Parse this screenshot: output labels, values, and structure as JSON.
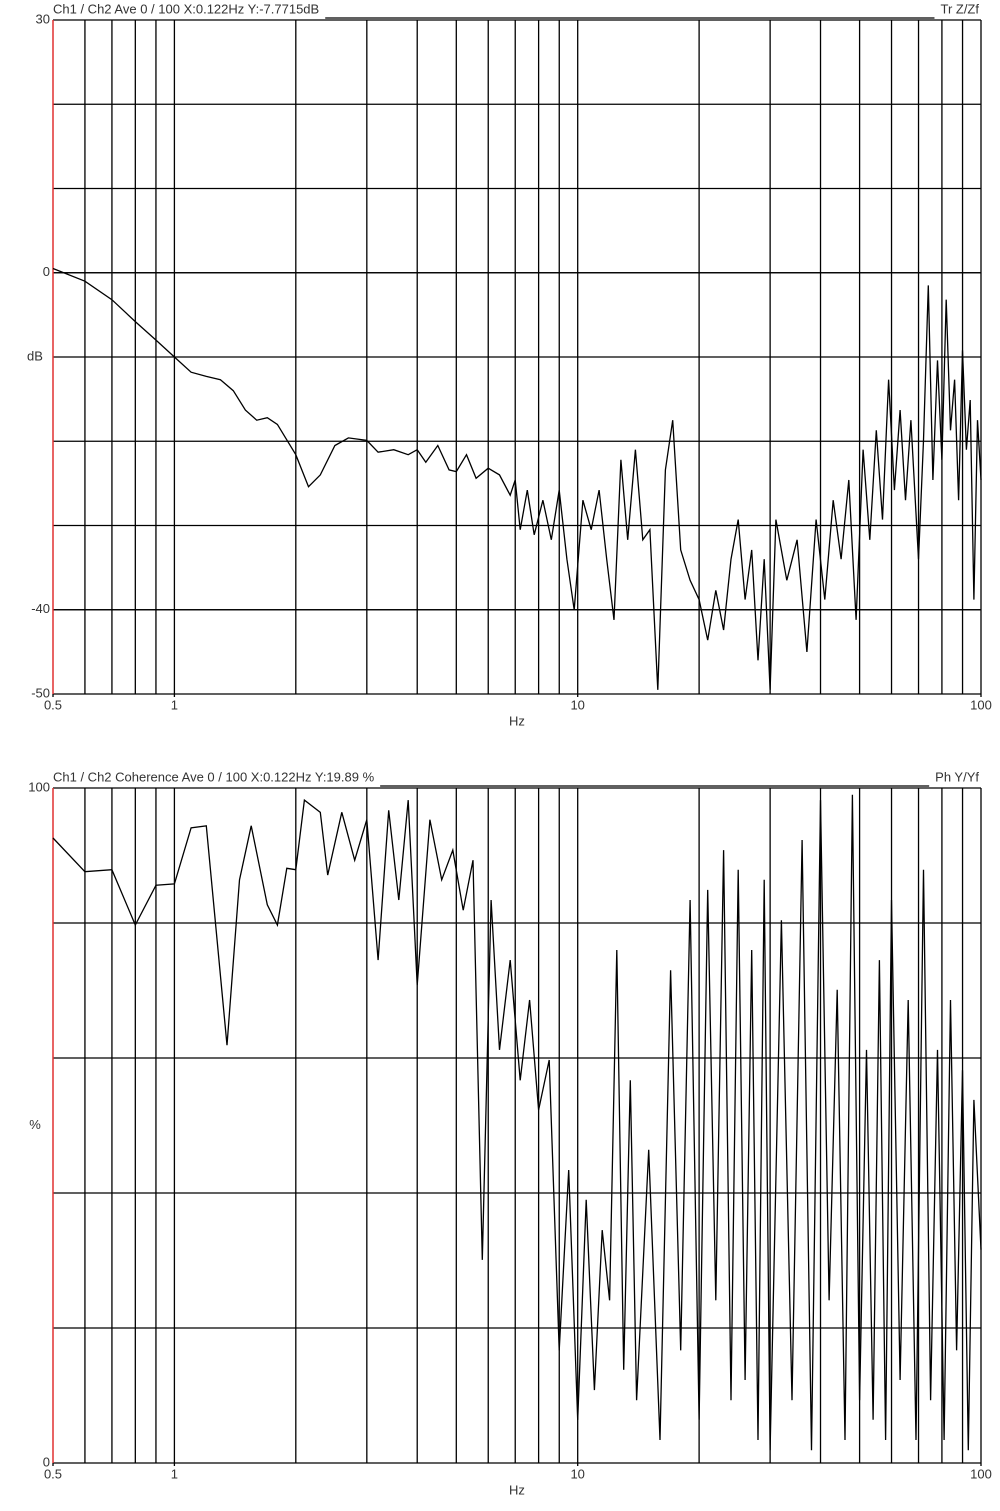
{
  "chart_data": [
    {
      "type": "line",
      "title": "Ch1 / Ch2  Ave 0 / 100  X:0.122Hz  Y:-7.7715dB",
      "title_right": "Tr Z/Zf",
      "xlabel": "Hz",
      "ylabel": "dB",
      "ylabel_at": -10,
      "xlog": true,
      "xlim": [
        0.5,
        100
      ],
      "xticks": [
        0.5,
        1,
        10,
        100
      ],
      "xgrid": [
        0.6,
        0.7,
        0.8,
        0.9,
        1,
        2,
        3,
        4,
        5,
        6,
        7,
        8,
        9,
        10,
        20,
        30,
        40,
        50,
        60,
        70,
        80,
        90
      ],
      "ylim": [
        -50,
        30
      ],
      "yticks": [
        30,
        0,
        -40,
        -50
      ],
      "ygrid": [
        20,
        10,
        0,
        -10,
        -20,
        -30,
        -40
      ],
      "color": "#000000",
      "axis_color": "#e03030",
      "x": [
        0.5,
        0.6,
        0.7,
        0.8,
        0.9,
        1.0,
        1.1,
        1.2,
        1.3,
        1.4,
        1.5,
        1.6,
        1.7,
        1.8,
        2.0,
        2.15,
        2.3,
        2.5,
        2.7,
        3.0,
        3.2,
        3.5,
        3.8,
        4.0,
        4.2,
        4.5,
        4.8,
        5.0,
        5.3,
        5.6,
        6.0,
        6.4,
        6.8,
        7.0,
        7.2,
        7.5,
        7.8,
        8.2,
        8.6,
        9.0,
        9.4,
        9.8,
        10.3,
        10.8,
        11.3,
        11.8,
        12.3,
        12.8,
        13.3,
        13.9,
        14.5,
        15.1,
        15.8,
        16.5,
        17.2,
        18,
        19,
        20,
        21,
        22,
        23,
        24,
        25,
        26,
        27,
        28,
        29,
        30,
        31,
        33,
        35,
        37,
        39,
        41,
        43,
        45,
        47,
        49,
        51,
        53,
        55,
        57,
        59,
        61,
        63,
        65,
        67,
        70,
        72,
        74,
        76,
        78,
        80,
        82,
        84,
        86,
        88,
        90,
        92,
        94,
        96,
        98,
        100
      ],
      "values": [
        0.5,
        -1,
        -3.2,
        -5.8,
        -8,
        -10,
        -11.8,
        -12.3,
        -12.7,
        -14,
        -16.3,
        -17.5,
        -17.2,
        -18,
        -21.6,
        -25.4,
        -24,
        -20.5,
        -19.6,
        -19.9,
        -21.3,
        -21,
        -21.6,
        -21,
        -22.5,
        -20.5,
        -23.4,
        -23.6,
        -21.6,
        -24.4,
        -23.2,
        -24,
        -26.4,
        -24.6,
        -30.5,
        -25.8,
        -31.1,
        -27,
        -31.7,
        -25.8,
        -34,
        -40,
        -27,
        -30.5,
        -25.8,
        -34,
        -41.2,
        -22.2,
        -31.7,
        -21,
        -31.7,
        -30.5,
        -49.5,
        -23.4,
        -17.5,
        -32.9,
        -36.5,
        -38.8,
        -43.6,
        -37.7,
        -42.4,
        -34,
        -29.3,
        -38.8,
        -32.9,
        -46,
        -34,
        -49.5,
        -29.3,
        -36.5,
        -31.7,
        -45,
        -29.3,
        -38.8,
        -27,
        -34,
        -24.6,
        -41.2,
        -21,
        -31.7,
        -18.7,
        -29.3,
        -12.7,
        -25.8,
        -16.3,
        -27,
        -17.5,
        -34,
        -19.9,
        -1.5,
        -24.6,
        -10.4,
        -22.2,
        -3.2,
        -18.7,
        -12.7,
        -27,
        -9.2,
        -21,
        -15.1,
        -38.8,
        -17.5,
        -24.6
      ]
    },
    {
      "type": "line",
      "title": "Ch1 / Ch2  Coherence Ave 0 / 100  X:0.122Hz  Y:19.89 %",
      "title_right": "Ph Y/Yf",
      "xlabel": "Hz",
      "ylabel": "%",
      "ylabel_at": 50,
      "xlog": true,
      "xlim": [
        0.5,
        100
      ],
      "xticks": [
        0.5,
        1,
        10,
        100
      ],
      "xgrid": [
        0.6,
        0.7,
        0.8,
        0.9,
        1,
        2,
        3,
        4,
        5,
        6,
        7,
        8,
        9,
        10,
        20,
        30,
        40,
        50,
        60,
        70,
        80,
        90
      ],
      "ylim": [
        0,
        100
      ],
      "yticks": [
        100,
        0
      ],
      "ygrid": [
        80,
        60,
        40,
        20
      ],
      "color": "#000000",
      "axis_color": "#e03030",
      "x": [
        0.5,
        0.6,
        0.7,
        0.8,
        0.9,
        1.0,
        1.1,
        1.2,
        1.35,
        1.45,
        1.55,
        1.7,
        1.8,
        1.9,
        2.0,
        2.1,
        2.3,
        2.4,
        2.6,
        2.8,
        3.0,
        3.2,
        3.4,
        3.6,
        3.8,
        4.0,
        4.3,
        4.6,
        4.9,
        5.2,
        5.5,
        5.8,
        6.1,
        6.4,
        6.8,
        7.2,
        7.6,
        8.0,
        8.5,
        9.0,
        9.5,
        10,
        10.5,
        11,
        11.5,
        12,
        12.5,
        13,
        13.5,
        14,
        15,
        16,
        17,
        18,
        19,
        20,
        21,
        22,
        23,
        24,
        25,
        26,
        27,
        28,
        29,
        30,
        32,
        34,
        36,
        38,
        40,
        42,
        44,
        46,
        48,
        50,
        52,
        54,
        56,
        58,
        60,
        63,
        66,
        69,
        72,
        75,
        78,
        81,
        84,
        87,
        90,
        93,
        96,
        100
      ],
      "values": [
        92.6,
        87.6,
        87.9,
        79.7,
        85.6,
        85.8,
        94.1,
        94.4,
        61.9,
        86.4,
        94.4,
        82.7,
        79.7,
        88.1,
        87.9,
        98.2,
        96.4,
        87.1,
        96.4,
        89.3,
        95.3,
        74.5,
        96.7,
        83.4,
        98.2,
        70.8,
        95.3,
        86.4,
        90.8,
        81.9,
        89.3,
        30.1,
        83.4,
        61.2,
        74.5,
        56.7,
        68.6,
        52.3,
        59.7,
        16.7,
        43.4,
        6.4,
        39,
        10.8,
        34.5,
        24.1,
        76,
        13.8,
        56.7,
        9.3,
        46.4,
        3.4,
        73,
        16.7,
        83.4,
        6.4,
        84.9,
        24.1,
        90.8,
        9.3,
        87.9,
        12.3,
        76,
        3.4,
        86.4,
        1.9,
        80.4,
        9.3,
        92.3,
        1.9,
        98.2,
        24.1,
        70.1,
        3.4,
        99,
        9.3,
        61.2,
        6.4,
        74.5,
        3.4,
        83.4,
        12.3,
        68.6,
        3.4,
        87.9,
        9.3,
        61.2,
        3.4,
        68.6,
        16.7,
        58.2,
        1.9,
        53.8,
        31.6
      ]
    }
  ]
}
